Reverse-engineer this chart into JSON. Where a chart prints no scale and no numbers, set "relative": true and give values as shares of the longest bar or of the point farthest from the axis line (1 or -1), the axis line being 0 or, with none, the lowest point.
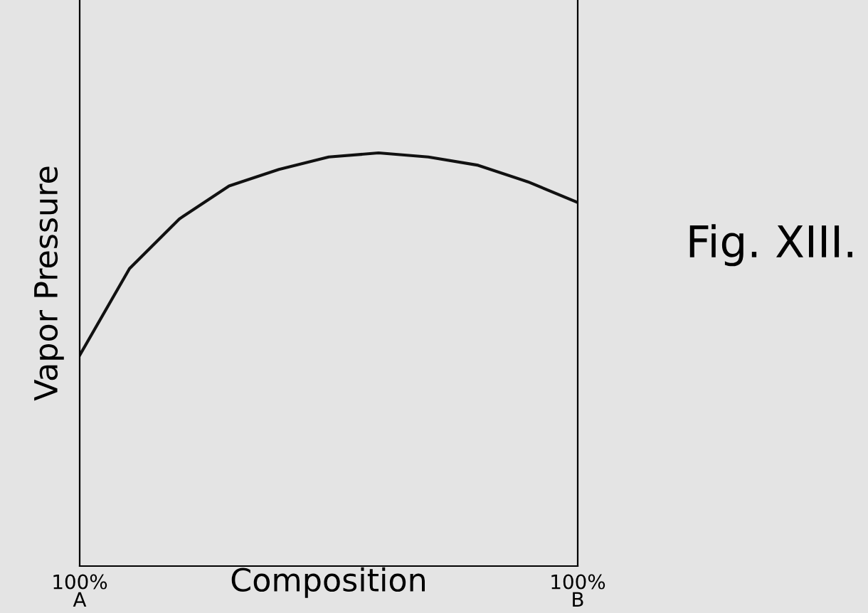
{
  "chart_data": {
    "type": "line",
    "relative": true,
    "xlabel": "Composition",
    "ylabel": "Vapor Pressure",
    "categories": [
      "100%\nA",
      null,
      null,
      null,
      null,
      null,
      null,
      null,
      null,
      null,
      "100%\nB"
    ],
    "series": [
      {
        "color": "#111111",
        "values": [
          0.51,
          0.72,
          0.84,
          0.92,
          0.96,
          0.99,
          1.0,
          0.99,
          0.97,
          0.93,
          0.88
        ]
      }
    ],
    "annotations": [
      "Fig. XIII."
    ],
    "grid": false,
    "legend": false,
    "marker": "none",
    "line_style": "solid"
  }
}
